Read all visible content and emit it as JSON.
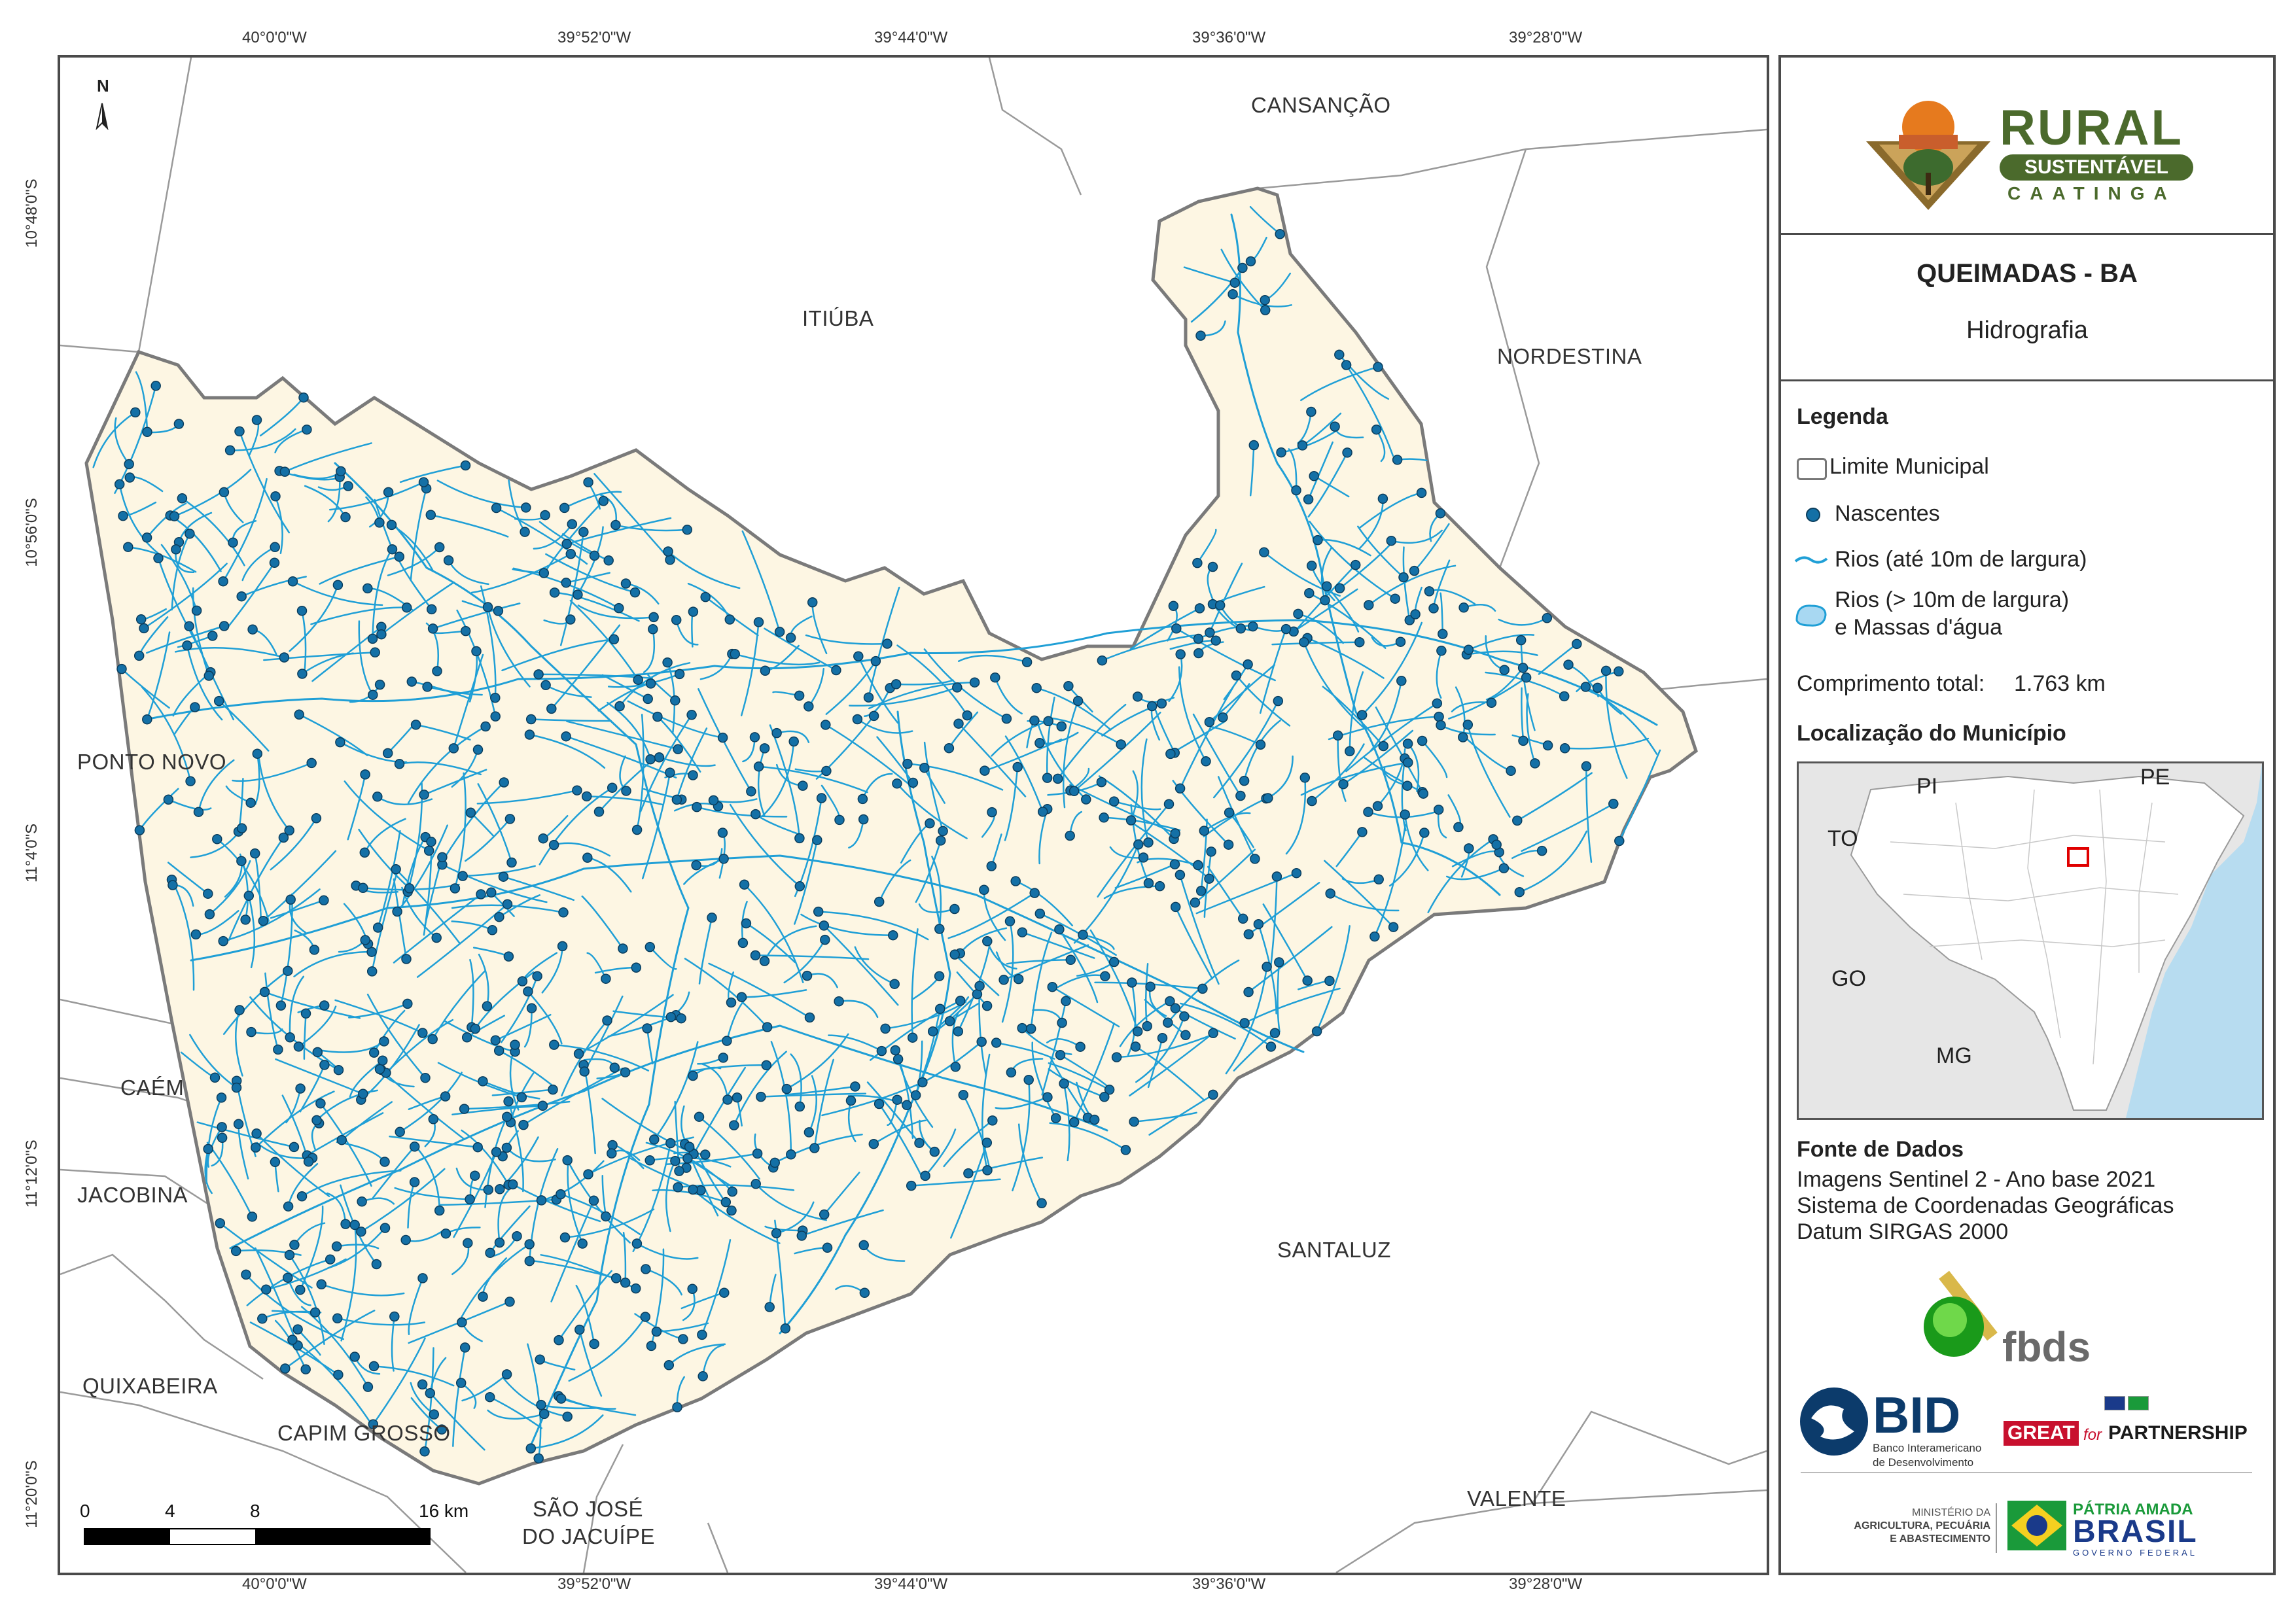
{
  "map": {
    "title": "QUEIMADAS - BA",
    "subtitle": "Hidrografia",
    "north_label": "N",
    "colors": {
      "municipality_fill": "#fdf6e3",
      "boundary": "#7f7f7f",
      "river": "#1f9fd6",
      "spring": "#1470a6",
      "ocean": "#b7dcf0",
      "inset_land": "#e6e6e6",
      "highlight": "#e00000"
    },
    "top_coords": [
      "40°0'0\"W",
      "39°52'0\"W",
      "39°44'0\"W",
      "39°36'0\"W",
      "39°28'0\"W"
    ],
    "bottom_coords": [
      "40°0'0\"W",
      "39°52'0\"W",
      "39°44'0\"W",
      "39°36'0\"W",
      "39°28'0\"W"
    ],
    "left_coords": [
      "10°48'0\"S",
      "10°56'0\"S",
      "11°4'0\"S",
      "11°12'0\"S",
      "11°20'0\"S"
    ],
    "neighbors": {
      "cansancao": "CANSANÇÃO",
      "itiuba": "ITIÚBA",
      "nordestina": "NORDESTINA",
      "ponto_novo": "PONTO NOVO",
      "caem": "CAÉM",
      "jacobina": "JACOBINA",
      "quixabeira": "QUIXABEIRA",
      "capim_grosso": "CAPIM GROSSO",
      "sao_jose_1": "SÃO JOSÉ",
      "sao_jose_2": "DO JACUÍPE",
      "santaluz": "SANTALUZ",
      "valente": "VALENTE"
    },
    "scale": {
      "labels": [
        "0",
        "4",
        "8",
        "16 km"
      ]
    }
  },
  "logo": {
    "rural": "RURAL",
    "sustentavel": "SUSTENTÁVEL",
    "caatinga": "CAATINGA"
  },
  "legend": {
    "heading": "Legenda",
    "items": {
      "limite": "Limite Municipal",
      "nascentes": "Nascentes",
      "rios_small": "Rios (até 10m de largura)",
      "rios_large_1": "Rios (> 10m de largura)",
      "rios_large_2": "e Massas d'água"
    },
    "total_length_label": "Comprimento total:",
    "total_length_value": "1.763 km"
  },
  "location": {
    "heading": "Localização do Município",
    "states": {
      "pi": "PI",
      "pe": "PE",
      "to": "TO",
      "go": "GO",
      "mg": "MG"
    }
  },
  "sources": {
    "heading": "Fonte de Dados",
    "lines": [
      "Imagens Sentinel 2 - Ano base 2021",
      "Sistema de Coordenadas Geográficas",
      "Datum SIRGAS 2000"
    ]
  },
  "partners": {
    "fbds": "fbds",
    "bid": "BID",
    "bid_sub_1": "Banco Interamericano",
    "bid_sub_2": "de Desenvolvimento",
    "great": "GREAT",
    "for": "for",
    "partnership": "PARTNERSHIP",
    "ministerio_1": "MINISTÉRIO DA",
    "ministerio_2": "AGRICULTURA, PECUÁRIA",
    "ministerio_3": "E ABASTECIMENTO",
    "patria": "PÁTRIA AMADA",
    "brasil": "BRASIL",
    "governo": "GOVERNO FEDERAL"
  }
}
